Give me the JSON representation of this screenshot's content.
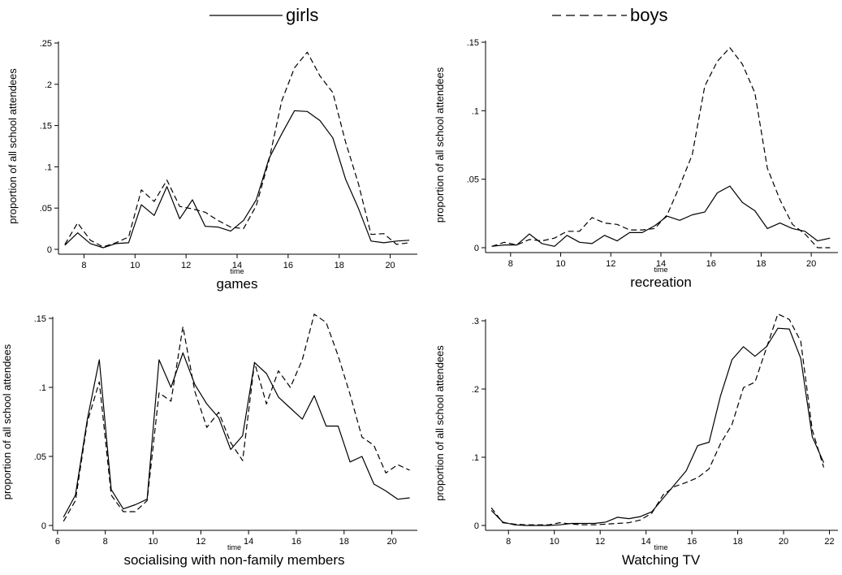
{
  "legend": [
    {
      "label": "girls",
      "dash": "solid"
    },
    {
      "label": "boys",
      "dash": "dashed"
    }
  ],
  "chart_data": [
    {
      "type": "line",
      "title": "games",
      "xlabel": "time",
      "ylabel": "proportion of all school attendees",
      "xlim": [
        7,
        21
      ],
      "ylim": [
        0,
        0.25
      ],
      "xticks": [
        "8",
        "10",
        "12",
        "14",
        "16",
        "18",
        "20"
      ],
      "yticks": [
        "0",
        ".05",
        ".1",
        ".15",
        ".2",
        ".25"
      ],
      "x": [
        7.25,
        7.75,
        8.25,
        8.75,
        9.25,
        9.75,
        10.25,
        10.75,
        11.25,
        11.75,
        12.25,
        12.75,
        13.25,
        13.75,
        14.25,
        14.75,
        15.25,
        15.75,
        16.25,
        16.75,
        17.25,
        17.75,
        18.25,
        18.75,
        19.25,
        19.75,
        20.25,
        20.75
      ],
      "series": [
        {
          "name": "girls",
          "values": [
            0.005,
            0.02,
            0.007,
            0.002,
            0.007,
            0.008,
            0.054,
            0.041,
            0.076,
            0.037,
            0.06,
            0.028,
            0.027,
            0.022,
            0.035,
            0.06,
            0.11,
            0.14,
            0.168,
            0.167,
            0.156,
            0.135,
            0.085,
            0.05,
            0.01,
            0.008,
            0.01,
            0.011
          ]
        },
        {
          "name": "boys",
          "values": [
            0.006,
            0.032,
            0.011,
            0.003,
            0.008,
            0.015,
            0.072,
            0.058,
            0.084,
            0.052,
            0.049,
            0.045,
            0.035,
            0.027,
            0.025,
            0.053,
            0.108,
            0.18,
            0.22,
            0.239,
            0.21,
            0.19,
            0.13,
            0.08,
            0.018,
            0.019,
            0.006,
            0.008
          ]
        }
      ]
    },
    {
      "type": "line",
      "title": "recreation",
      "xlabel": "time",
      "ylabel": "proportion of all school attendees",
      "xlim": [
        7,
        21
      ],
      "ylim": [
        0,
        0.15
      ],
      "xticks": [
        "8",
        "10",
        "12",
        "14",
        "16",
        "18",
        "20"
      ],
      "yticks": [
        "0",
        ".05",
        ".1",
        ".15"
      ],
      "x": [
        7.25,
        7.75,
        8.25,
        8.75,
        9.25,
        9.75,
        10.25,
        10.75,
        11.25,
        11.75,
        12.25,
        12.75,
        13.25,
        13.75,
        14.25,
        14.75,
        15.25,
        15.75,
        16.25,
        16.75,
        17.25,
        17.75,
        18.25,
        18.75,
        19.25,
        19.75,
        20.25,
        20.75
      ],
      "series": [
        {
          "name": "girls",
          "values": [
            0.001,
            0.002,
            0.002,
            0.01,
            0.003,
            0.001,
            0.009,
            0.004,
            0.003,
            0.009,
            0.005,
            0.011,
            0.011,
            0.016,
            0.023,
            0.02,
            0.024,
            0.026,
            0.04,
            0.045,
            0.033,
            0.027,
            0.014,
            0.018,
            0.014,
            0.012,
            0.005,
            0.007
          ]
        },
        {
          "name": "boys",
          "values": [
            0.001,
            0.004,
            0.002,
            0.006,
            0.005,
            0.007,
            0.012,
            0.012,
            0.022,
            0.018,
            0.017,
            0.013,
            0.013,
            0.014,
            0.024,
            0.045,
            0.068,
            0.118,
            0.136,
            0.146,
            0.134,
            0.113,
            0.058,
            0.035,
            0.017,
            0.01,
            0.0,
            0.0
          ]
        }
      ]
    },
    {
      "type": "line",
      "title": "socialising with non-family members",
      "xlabel": "time",
      "ylabel": "proportion of all school attendees",
      "xlim": [
        5.8,
        21
      ],
      "ylim": [
        0,
        0.15
      ],
      "xticks": [
        "6",
        "8",
        "10",
        "12",
        "14",
        "16",
        "18",
        "20"
      ],
      "yticks": [
        "0",
        ".05",
        ".1",
        ".15"
      ],
      "x": [
        6.25,
        6.75,
        7.25,
        7.75,
        8.25,
        8.75,
        9.25,
        9.75,
        10.25,
        10.75,
        11.25,
        11.75,
        12.25,
        12.75,
        13.25,
        13.75,
        14.25,
        14.75,
        15.25,
        15.75,
        16.25,
        16.75,
        17.25,
        17.75,
        18.25,
        18.75,
        19.25,
        19.75,
        20.25,
        20.75
      ],
      "series": [
        {
          "name": "girls",
          "values": [
            0.006,
            0.022,
            0.077,
            0.12,
            0.026,
            0.012,
            0.015,
            0.019,
            0.12,
            0.1,
            0.125,
            0.102,
            0.088,
            0.078,
            0.055,
            0.065,
            0.118,
            0.11,
            0.093,
            0.085,
            0.077,
            0.094,
            0.072,
            0.072,
            0.046,
            0.05,
            0.03,
            0.025,
            0.019,
            0.02
          ]
        },
        {
          "name": "boys",
          "values": [
            0.003,
            0.018,
            0.075,
            0.104,
            0.022,
            0.01,
            0.01,
            0.018,
            0.096,
            0.09,
            0.144,
            0.097,
            0.071,
            0.082,
            0.06,
            0.047,
            0.118,
            0.088,
            0.112,
            0.1,
            0.12,
            0.153,
            0.147,
            0.123,
            0.095,
            0.064,
            0.058,
            0.038,
            0.044,
            0.04
          ]
        }
      ]
    },
    {
      "type": "line",
      "title": "Watching TV",
      "xlabel": "time",
      "ylabel": "proportion of all school attendees",
      "xlim": [
        7,
        22.3
      ],
      "ylim": [
        0,
        0.3
      ],
      "xticks": [
        "8",
        "10",
        "12",
        "14",
        "16",
        "18",
        "20",
        "22"
      ],
      "yticks": [
        "0",
        ".1",
        ".2",
        ".3"
      ],
      "x": [
        7.25,
        7.75,
        8.25,
        8.75,
        9.25,
        9.75,
        10.25,
        10.75,
        11.25,
        11.75,
        12.25,
        12.75,
        13.25,
        13.75,
        14.25,
        14.75,
        15.25,
        15.75,
        16.25,
        16.75,
        17.25,
        17.75,
        18.25,
        18.75,
        19.25,
        19.75,
        20.25,
        20.75,
        21.25,
        21.75
      ],
      "series": [
        {
          "name": "girls",
          "values": [
            0.022,
            0.005,
            0.001,
            0.0,
            0.0,
            0.0,
            0.001,
            0.003,
            0.003,
            0.003,
            0.005,
            0.012,
            0.01,
            0.013,
            0.02,
            0.04,
            0.06,
            0.08,
            0.117,
            0.122,
            0.19,
            0.243,
            0.262,
            0.248,
            0.262,
            0.289,
            0.288,
            0.245,
            0.13,
            0.092
          ]
        },
        {
          "name": "boys",
          "values": [
            0.026,
            0.004,
            0.002,
            0.001,
            0.001,
            0.001,
            0.004,
            0.002,
            0.001,
            0.001,
            0.002,
            0.003,
            0.004,
            0.008,
            0.018,
            0.045,
            0.057,
            0.063,
            0.07,
            0.083,
            0.12,
            0.148,
            0.202,
            0.21,
            0.26,
            0.31,
            0.302,
            0.27,
            0.14,
            0.085
          ]
        }
      ]
    }
  ]
}
